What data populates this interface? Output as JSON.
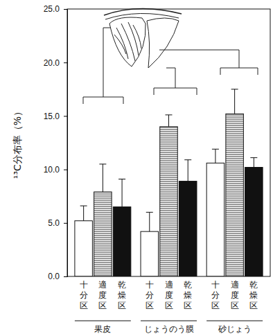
{
  "chart_data": {
    "type": "bar",
    "ylabel": "¹³C分布率（%）",
    "categories": [
      "果皮",
      "じょうのう膜",
      "砂じょう"
    ],
    "series": [
      {
        "name": "十分区",
        "color": "#ffffff",
        "values": [
          5.2,
          4.2,
          10.6
        ],
        "errors": [
          1.4,
          1.8,
          1.3
        ]
      },
      {
        "name": "適度区",
        "color": "#555555",
        "marker": "hatch",
        "values": [
          7.9,
          14.0,
          15.2
        ],
        "errors": [
          2.6,
          1.1,
          2.3
        ]
      },
      {
        "name": "乾燥区",
        "color": "#111111",
        "values": [
          6.5,
          8.9,
          10.2
        ],
        "errors": [
          2.6,
          2.0,
          0.9
        ]
      }
    ],
    "ylim": [
      0,
      25
    ],
    "yticks": [
      {
        "value": 0,
        "label": "0.0"
      },
      {
        "value": 5,
        "label": "5.0"
      },
      {
        "value": 10,
        "label": "10.0"
      },
      {
        "value": 15,
        "label": "15.0"
      },
      {
        "value": 20,
        "label": "20.0"
      },
      {
        "value": 25,
        "label": "25.0"
      }
    ]
  }
}
